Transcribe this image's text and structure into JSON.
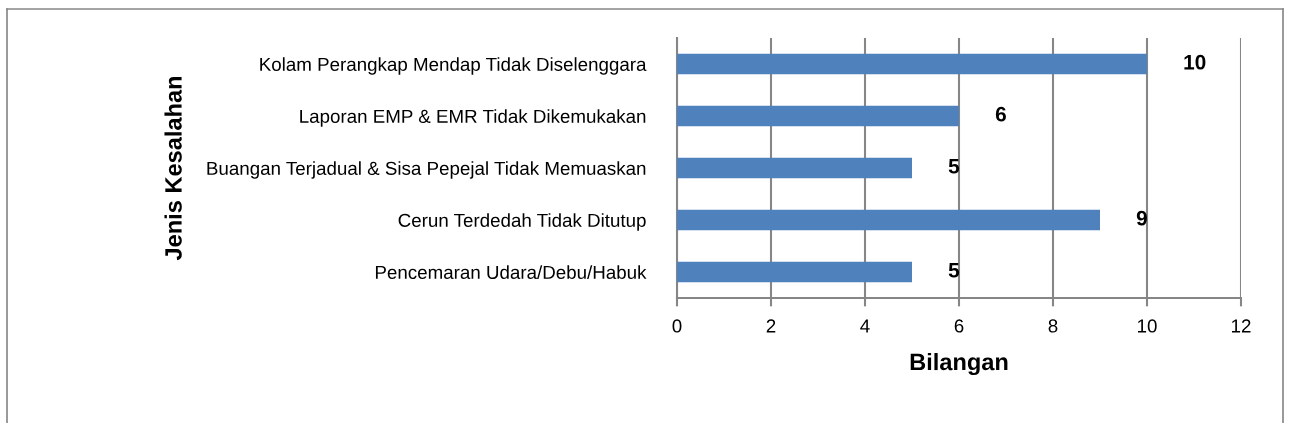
{
  "chart_data": {
    "type": "bar",
    "orientation": "horizontal",
    "categories": [
      "Kolam Perangkap Mendap Tidak Diselenggara",
      "Laporan EMP & EMR Tidak Dikemukakan",
      "Buangan Terjadual & Sisa Pepejal Tidak Memuaskan",
      "Cerun Terdedah Tidak Ditutup",
      "Pencemaran Udara/Debu/Habuk"
    ],
    "values": [
      10,
      6,
      5,
      9,
      5
    ],
    "color": "#4f81bd",
    "xlim": [
      0,
      12
    ],
    "xticks": [
      0,
      2,
      4,
      6,
      8,
      10,
      12
    ],
    "xlabel": "Bilangan",
    "ylabel": "Jenis Kesalahan",
    "grid": "x",
    "data_labels": true
  }
}
